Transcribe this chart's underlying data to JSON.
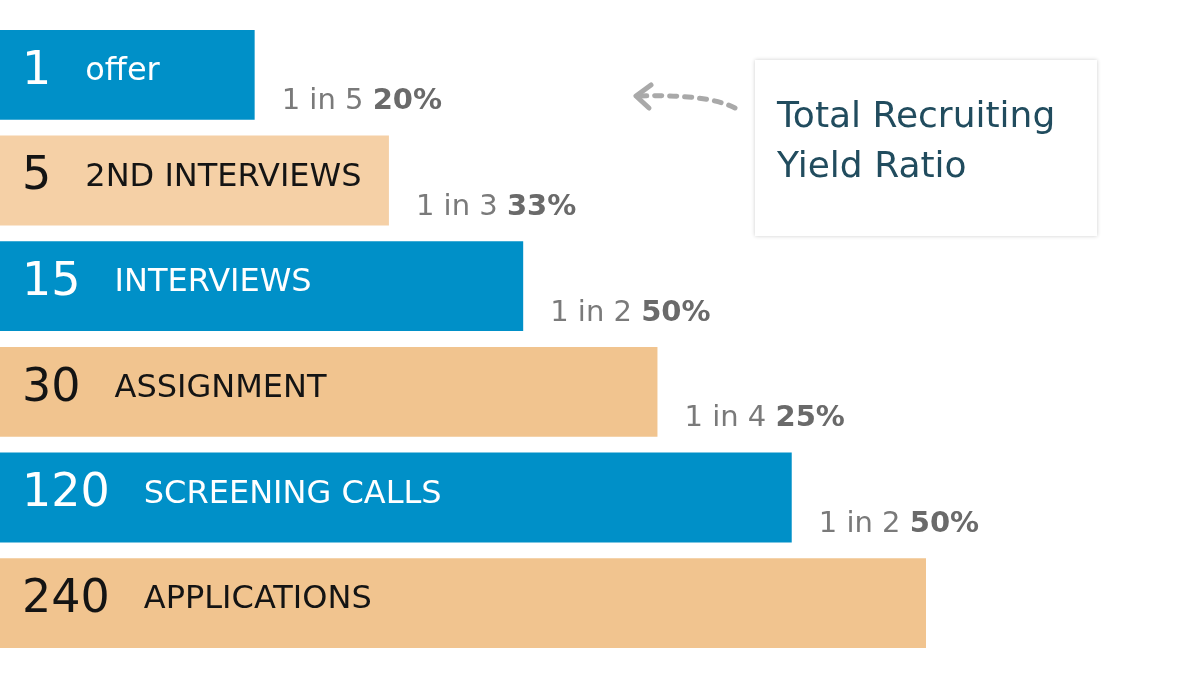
{
  "chart_data": {
    "type": "other",
    "data_labels": true,
    "categories": [
      "offer",
      "2ND INTERVIEWS",
      "INTERVIEWS",
      "ASSIGNMENT",
      "SCREENING CALLS",
      "APPLICATIONS"
    ],
    "values": [
      1,
      5,
      15,
      30,
      120,
      240
    ],
    "colors": [
      "#0090c8",
      "#f5d0a6",
      "#0090c8",
      "#f1c48f",
      "#0090c8",
      "#f1c48f"
    ],
    "annotations": [
      {
        "text": "1 in 5 20%",
        "y": "offer"
      },
      {
        "text": "1 in 3 33%",
        "y": "2ND INTERVIEWS"
      },
      {
        "text": "1 in 2 50%",
        "y": "INTERVIEWS"
      },
      {
        "text": "1 in 4 25%",
        "y": "ASSIGNMENT"
      },
      {
        "text": "1 in 2 50%",
        "y": "SCREENING CALLS"
      },
      "Total Recruiting Yield Ratio"
    ]
  }
}
